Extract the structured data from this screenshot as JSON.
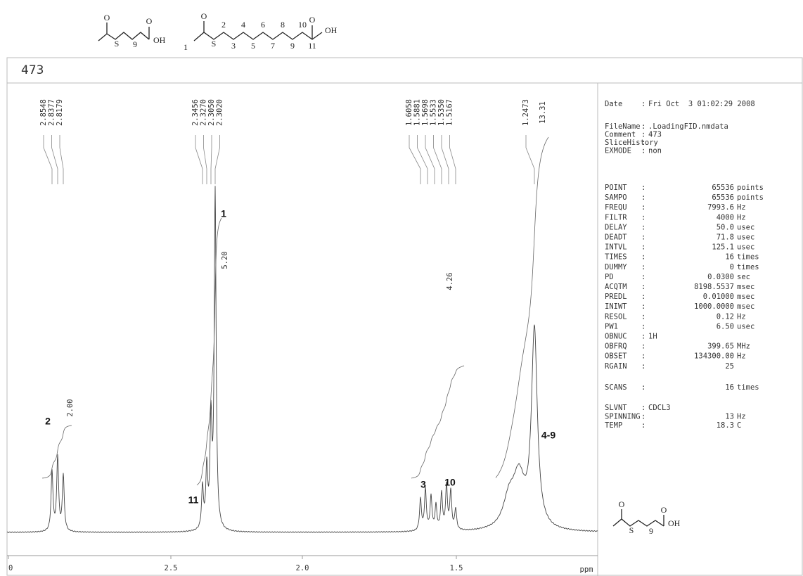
{
  "header": {
    "structure_left": {
      "oxygen": "O",
      "sulfur": "S",
      "subscript": "9",
      "acid_oxygen": "O",
      "acid": "OH"
    },
    "structure_right": {
      "oxygen": "O",
      "sulfur": "S",
      "start": "1",
      "upper_numbers": [
        "2",
        "4",
        "6",
        "8",
        "10"
      ],
      "lower_numbers": [
        "3",
        "5",
        "7",
        "9",
        "11"
      ],
      "acid_oxygen": "O",
      "acid": "OH"
    }
  },
  "title": "473",
  "spectrum": {
    "peak_groups": [
      [
        "2.8548",
        "2.8377",
        "2.8179"
      ],
      [
        "2.3456",
        "2.3270",
        "2.3050",
        "2.3020"
      ],
      [
        "1.6058",
        "1.5881",
        "1.5698",
        "1.5533",
        "1.5350",
        "1.5167"
      ],
      [
        "1.2473"
      ]
    ],
    "integrals": [
      "2.00",
      "5.20",
      "4.26",
      "13.31"
    ],
    "annotations": [
      "2",
      "1",
      "11",
      "3",
      "10",
      "4-9"
    ],
    "x_ticks": [
      "0",
      "2.5",
      "2.0",
      "1.5"
    ],
    "x_unit": "ppm"
  },
  "parameters": {
    "date": {
      "key": "Date",
      "value": "Fri Oct  3 01:02:29 2008"
    },
    "info": [
      {
        "key": "FileName",
        "value": ".LoadingFID.nmdata"
      },
      {
        "key": "Comment",
        "value": "473"
      },
      {
        "key": "SliceHistory"
      },
      {
        "key": "EXMODE",
        "value": "non"
      }
    ],
    "acquisition": [
      {
        "key": "POINT",
        "value": "65536",
        "unit": "points"
      },
      {
        "key": "SAMPO",
        "value": "65536",
        "unit": "points"
      },
      {
        "key": "FREQU",
        "value": "7993.6",
        "unit": "Hz"
      },
      {
        "key": "FILTR",
        "value": "4000",
        "unit": "Hz"
      },
      {
        "key": "DELAY",
        "value": "50.0",
        "unit": "usec"
      },
      {
        "key": "DEADT",
        "value": "71.8",
        "unit": "usec"
      },
      {
        "key": "INTVL",
        "value": "125.1",
        "unit": "usec"
      },
      {
        "key": "TIMES",
        "value": "16",
        "unit": "times"
      },
      {
        "key": "DUMMY",
        "value": "0",
        "unit": "times"
      },
      {
        "key": "PD",
        "value": "0.0300",
        "unit": "sec"
      },
      {
        "key": "ACQTM",
        "value": "8198.5537",
        "unit": "msec"
      },
      {
        "key": "PREDL",
        "value": "0.01000",
        "unit": "msec"
      },
      {
        "key": "INIWT",
        "value": "1000.0000",
        "unit": "msec"
      },
      {
        "key": "RESOL",
        "value": "0.12",
        "unit": "Hz"
      },
      {
        "key": "PW1",
        "value": "6.50",
        "unit": "usec"
      },
      {
        "key": "OBNUC",
        "text": "1H"
      },
      {
        "key": "OBFRQ",
        "value": "399.65",
        "unit": "MHz"
      },
      {
        "key": "OBSET",
        "value": "134300.00",
        "unit": "Hz"
      },
      {
        "key": "RGAIN",
        "value": "25"
      }
    ],
    "scans": [
      {
        "key": "SCANS",
        "value": "16",
        "unit": "times"
      }
    ],
    "sample": [
      {
        "key": "SLVNT",
        "text": "CDCL3"
      },
      {
        "key": "SPINNING",
        "value": "13",
        "unit": "Hz"
      },
      {
        "key": "TEMP",
        "value": "18.3",
        "unit": "C"
      }
    ],
    "structure": {
      "oxygen": "O",
      "sulfur": "S",
      "subscript": "9",
      "acid_oxygen": "O",
      "acid": "OH"
    }
  }
}
